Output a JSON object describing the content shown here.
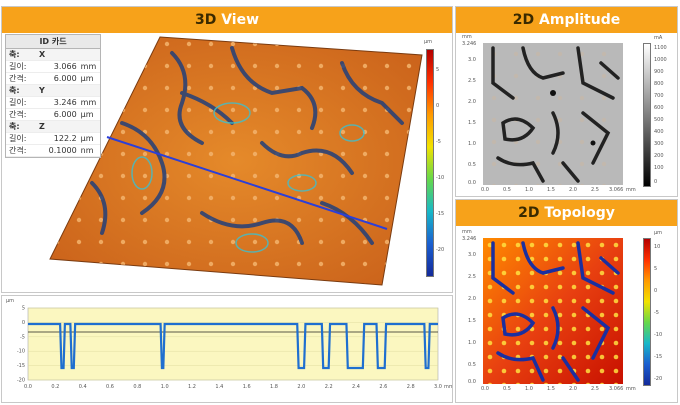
{
  "panels": {
    "view3d": {
      "title_prefix": "3D",
      "title_rest": " View"
    },
    "amplitude": {
      "title_prefix": "2D",
      "title_rest": " Amplitude"
    },
    "topology": {
      "title_prefix": "2D",
      "title_rest": " Topology"
    }
  },
  "id_card": {
    "title": "ID 카드",
    "axes": [
      {
        "axis_label": "축:",
        "axis_name": "X",
        "length_label": "길이:",
        "length": "3.066",
        "length_unit": "mm",
        "step_label": "간격:",
        "step": "6.000",
        "step_unit": "μm"
      },
      {
        "axis_label": "축:",
        "axis_name": "Y",
        "length_label": "길이:",
        "length": "3.246",
        "length_unit": "mm",
        "step_label": "간격:",
        "step": "6.000",
        "step_unit": "μm"
      },
      {
        "axis_label": "축:",
        "axis_name": "Z",
        "length_label": "길이:",
        "length": "122.2",
        "length_unit": "μm",
        "step_label": "간격:",
        "step": "0.1000",
        "step_unit": "nm"
      }
    ]
  },
  "scale3d": {
    "unit": "μm",
    "ticks": [
      "5",
      "0",
      "-5",
      "-10",
      "-15",
      "-20"
    ]
  },
  "amp_scale": {
    "unit": "mA",
    "ticks": [
      "1100",
      "1000",
      "900",
      "800",
      "700",
      "600",
      "500",
      "400",
      "300",
      "200",
      "100",
      "0"
    ]
  },
  "topo_scale": {
    "unit": "μm",
    "ticks": [
      "10",
      "5",
      "0",
      "-5",
      "-10",
      "-15",
      "-20"
    ]
  },
  "amp_axes": {
    "y_unit": "mm",
    "y_top": "3.246",
    "y_ticks": [
      "3.0",
      "2.5",
      "2.0",
      "1.5",
      "1.0",
      "0.5",
      "0.0"
    ],
    "x_ticks": [
      "0.0",
      "0.5",
      "1.0",
      "1.5",
      "2.0",
      "2.5",
      "3.066"
    ],
    "x_unit": "mm"
  },
  "topo_axes": {
    "y_unit": "mm",
    "y_top": "3.246",
    "y_ticks": [
      "3.0",
      "2.5",
      "2.0",
      "1.5",
      "1.0",
      "0.5",
      "0.0"
    ],
    "x_ticks": [
      "0.0",
      "0.5",
      "1.0",
      "1.5",
      "2.0",
      "2.5",
      "3.066"
    ],
    "x_unit": "mm"
  },
  "profile": {
    "y_unit": "μm",
    "y_ticks": [
      "5",
      "0",
      "-5",
      "-10",
      "-15",
      "-20"
    ],
    "x_ticks": [
      "0.0",
      "0.2",
      "0.4",
      "0.6",
      "0.8",
      "1.0",
      "1.2",
      "1.4",
      "1.6",
      "1.8",
      "2.0",
      "2.2",
      "2.4",
      "2.6",
      "2.8",
      "3.0"
    ],
    "x_unit": "mm",
    "colors": {
      "line": "#1f6fd0",
      "fill": "#fbf7c0"
    }
  },
  "colors": {
    "accent": "#f7a21a"
  }
}
